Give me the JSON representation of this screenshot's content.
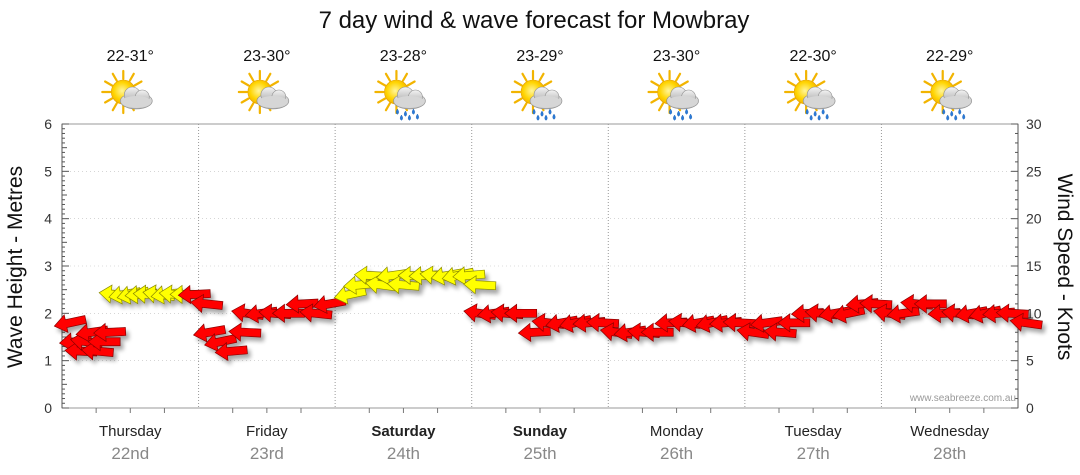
{
  "chart_data": {
    "type": "scatter",
    "title": "7 day wind & wave forecast for Mowbray",
    "ylabel_left": "Wave Height - Metres",
    "ylabel_right": "Wind Speed - Knots",
    "ylim_left": [
      0,
      6
    ],
    "ylim_right": [
      0,
      30
    ],
    "yticks_left": [
      "0",
      "1",
      "2",
      "3",
      "4",
      "5",
      "6"
    ],
    "yticks_right": [
      "0",
      "5",
      "10",
      "15",
      "20",
      "25",
      "30"
    ],
    "grid": true,
    "credit": "www.seabreeze.com.au",
    "days": [
      {
        "name": "Thursday",
        "date": "22nd",
        "temp": "22-31°",
        "icon": "sun-cloud-icon",
        "bold": false
      },
      {
        "name": "Friday",
        "date": "23rd",
        "temp": "23-30°",
        "icon": "sun-cloud-icon",
        "bold": false
      },
      {
        "name": "Saturday",
        "date": "24th",
        "temp": "23-28°",
        "icon": "sun-cloud-rain-icon",
        "bold": true
      },
      {
        "name": "Sunday",
        "date": "25th",
        "temp": "23-29°",
        "icon": "sun-cloud-rain-icon",
        "bold": true
      },
      {
        "name": "Monday",
        "date": "26th",
        "temp": "23-30°",
        "icon": "sun-cloud-rain-icon",
        "bold": false
      },
      {
        "name": "Tuesday",
        "date": "27th",
        "temp": "22-30°",
        "icon": "sun-cloud-rain-icon",
        "bold": false
      },
      {
        "name": "Wednesday",
        "date": "28th",
        "temp": "22-29°",
        "icon": "sun-cloud-rain-icon",
        "bold": false
      }
    ],
    "colors": {
      "calm": "#ff0000",
      "moderate": "#ffff00",
      "sun": "#f7c400",
      "cloud": "#cfcfcf",
      "rain": "#2a7ad8",
      "grid": "#999999"
    },
    "series": [
      {
        "name": "Wind",
        "points": [
          {
            "t": 0.0,
            "kn": 9,
            "c": "calm"
          },
          {
            "t": 0.04,
            "kn": 7,
            "c": "calm"
          },
          {
            "t": 0.08,
            "kn": 6,
            "c": "calm"
          },
          {
            "t": 0.12,
            "kn": 7,
            "c": "calm"
          },
          {
            "t": 0.16,
            "kn": 8,
            "c": "calm"
          },
          {
            "t": 0.2,
            "kn": 6,
            "c": "calm"
          },
          {
            "t": 0.25,
            "kn": 7,
            "c": "calm"
          },
          {
            "t": 0.29,
            "kn": 8,
            "c": "calm"
          },
          {
            "t": 0.33,
            "kn": 12,
            "c": "moderate"
          },
          {
            "t": 0.4,
            "kn": 12,
            "c": "moderate"
          },
          {
            "t": 0.46,
            "kn": 12,
            "c": "moderate"
          },
          {
            "t": 0.52,
            "kn": 12,
            "c": "moderate"
          },
          {
            "t": 0.58,
            "kn": 12,
            "c": "moderate"
          },
          {
            "t": 0.65,
            "kn": 12,
            "c": "moderate"
          },
          {
            "t": 0.71,
            "kn": 12,
            "c": "moderate"
          },
          {
            "t": 0.77,
            "kn": 12,
            "c": "moderate"
          },
          {
            "t": 0.85,
            "kn": 12,
            "c": "moderate"
          },
          {
            "t": 0.91,
            "kn": 12,
            "c": "calm"
          },
          {
            "t": 1.0,
            "kn": 11,
            "c": "calm"
          },
          {
            "t": 1.02,
            "kn": 8,
            "c": "calm"
          },
          {
            "t": 1.1,
            "kn": 7,
            "c": "calm"
          },
          {
            "t": 1.18,
            "kn": 6,
            "c": "calm"
          },
          {
            "t": 1.28,
            "kn": 8,
            "c": "calm"
          },
          {
            "t": 1.3,
            "kn": 10,
            "c": "calm"
          },
          {
            "t": 1.4,
            "kn": 10,
            "c": "calm"
          },
          {
            "t": 1.5,
            "kn": 10,
            "c": "calm"
          },
          {
            "t": 1.6,
            "kn": 10,
            "c": "calm"
          },
          {
            "t": 1.7,
            "kn": 11,
            "c": "calm"
          },
          {
            "t": 1.8,
            "kn": 10,
            "c": "calm"
          },
          {
            "t": 1.9,
            "kn": 11,
            "c": "calm"
          },
          {
            "t": 2.05,
            "kn": 12,
            "c": "moderate"
          },
          {
            "t": 2.12,
            "kn": 13,
            "c": "moderate"
          },
          {
            "t": 2.2,
            "kn": 14,
            "c": "moderate"
          },
          {
            "t": 2.28,
            "kn": 13,
            "c": "moderate"
          },
          {
            "t": 2.36,
            "kn": 14,
            "c": "moderate"
          },
          {
            "t": 2.44,
            "kn": 13,
            "c": "moderate"
          },
          {
            "t": 2.52,
            "kn": 14,
            "c": "moderate"
          },
          {
            "t": 2.6,
            "kn": 14,
            "c": "moderate"
          },
          {
            "t": 2.68,
            "kn": 14,
            "c": "moderate"
          },
          {
            "t": 2.76,
            "kn": 14,
            "c": "moderate"
          },
          {
            "t": 2.84,
            "kn": 14,
            "c": "moderate"
          },
          {
            "t": 2.92,
            "kn": 14,
            "c": "moderate"
          },
          {
            "t": 3.0,
            "kn": 13,
            "c": "moderate"
          },
          {
            "t": 3.0,
            "kn": 10,
            "c": "calm"
          },
          {
            "t": 3.1,
            "kn": 10,
            "c": "calm"
          },
          {
            "t": 3.2,
            "kn": 10,
            "c": "calm"
          },
          {
            "t": 3.3,
            "kn": 10,
            "c": "calm"
          },
          {
            "t": 3.4,
            "kn": 8,
            "c": "calm"
          },
          {
            "t": 3.5,
            "kn": 9,
            "c": "calm"
          },
          {
            "t": 3.6,
            "kn": 9,
            "c": "calm"
          },
          {
            "t": 3.7,
            "kn": 9,
            "c": "calm"
          },
          {
            "t": 3.8,
            "kn": 9,
            "c": "calm"
          },
          {
            "t": 3.9,
            "kn": 9,
            "c": "calm"
          },
          {
            "t": 4.0,
            "kn": 8,
            "c": "calm"
          },
          {
            "t": 4.1,
            "kn": 8,
            "c": "calm"
          },
          {
            "t": 4.2,
            "kn": 8,
            "c": "calm"
          },
          {
            "t": 4.3,
            "kn": 8,
            "c": "calm"
          },
          {
            "t": 4.4,
            "kn": 9,
            "c": "calm"
          },
          {
            "t": 4.5,
            "kn": 9,
            "c": "calm"
          },
          {
            "t": 4.6,
            "kn": 9,
            "c": "calm"
          },
          {
            "t": 4.7,
            "kn": 9,
            "c": "calm"
          },
          {
            "t": 4.8,
            "kn": 9,
            "c": "calm"
          },
          {
            "t": 4.9,
            "kn": 9,
            "c": "calm"
          },
          {
            "t": 5.0,
            "kn": 8,
            "c": "calm"
          },
          {
            "t": 5.1,
            "kn": 9,
            "c": "calm"
          },
          {
            "t": 5.2,
            "kn": 8,
            "c": "calm"
          },
          {
            "t": 5.3,
            "kn": 9,
            "c": "calm"
          },
          {
            "t": 5.4,
            "kn": 10,
            "c": "calm"
          },
          {
            "t": 5.5,
            "kn": 10,
            "c": "calm"
          },
          {
            "t": 5.6,
            "kn": 10,
            "c": "calm"
          },
          {
            "t": 5.7,
            "kn": 10,
            "c": "calm"
          },
          {
            "t": 5.8,
            "kn": 11,
            "c": "calm"
          },
          {
            "t": 5.9,
            "kn": 11,
            "c": "calm"
          },
          {
            "t": 6.0,
            "kn": 10,
            "c": "calm"
          },
          {
            "t": 6.1,
            "kn": 10,
            "c": "calm"
          },
          {
            "t": 6.2,
            "kn": 11,
            "c": "calm"
          },
          {
            "t": 6.3,
            "kn": 11,
            "c": "calm"
          },
          {
            "t": 6.4,
            "kn": 10,
            "c": "calm"
          },
          {
            "t": 6.5,
            "kn": 10,
            "c": "calm"
          },
          {
            "t": 6.6,
            "kn": 10,
            "c": "calm"
          },
          {
            "t": 6.7,
            "kn": 10,
            "c": "calm"
          },
          {
            "t": 6.8,
            "kn": 10,
            "c": "calm"
          },
          {
            "t": 6.9,
            "kn": 10,
            "c": "calm"
          },
          {
            "t": 7.0,
            "kn": 9,
            "c": "calm"
          }
        ]
      }
    ]
  }
}
